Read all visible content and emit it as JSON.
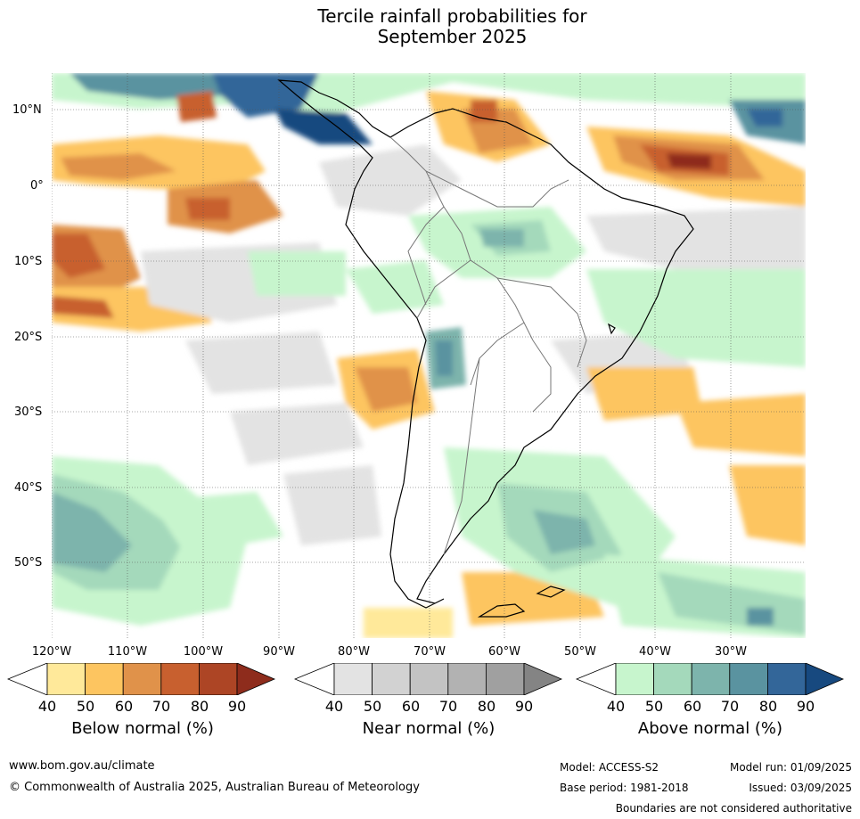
{
  "title": {
    "line1": "Tercile rainfall probabilities for",
    "line2": "September 2025"
  },
  "lat_labels": [
    "10°N",
    "0°",
    "10°S",
    "20°S",
    "30°S",
    "40°S",
    "50°S"
  ],
  "lon_labels": [
    "120°W",
    "110°W",
    "100°W",
    "90°W",
    "80°W",
    "70°W",
    "60°W",
    "50°W",
    "40°W",
    "30°W"
  ],
  "colorbars": [
    {
      "label": "Below normal (%)",
      "ticks": [
        "40",
        "50",
        "60",
        "70",
        "80",
        "90"
      ],
      "colors": [
        "#ffffff",
        "#ffe99a",
        "#fdc560",
        "#e0924a",
        "#c8602f",
        "#ad4525",
        "#8e2c1c"
      ]
    },
    {
      "label": "Near normal (%)",
      "ticks": [
        "40",
        "50",
        "60",
        "70",
        "80",
        "90"
      ],
      "colors": [
        "#ffffff",
        "#e3e3e3",
        "#d2d2d2",
        "#c3c3c3",
        "#b2b2b2",
        "#a0a0a0",
        "#848484"
      ]
    },
    {
      "label": "Above normal (%)",
      "ticks": [
        "40",
        "50",
        "60",
        "70",
        "80",
        "90"
      ],
      "colors": [
        "#ffffff",
        "#c7f5cd",
        "#a4d9bb",
        "#7db4ac",
        "#5a93a0",
        "#336699",
        "#17497f"
      ]
    }
  ],
  "footer": {
    "website": "www.bom.gov.au/climate",
    "copyright": "© Commonwealth of Australia 2025, Australian Bureau of Meteorology",
    "model": "Model: ACCESS-S2",
    "base_period": "Base period: 1981-2018",
    "model_run": "Model run: 01/09/2025",
    "issued": "Issued: 03/09/2025",
    "disclaimer": "Boundaries are not considered authoritative"
  }
}
